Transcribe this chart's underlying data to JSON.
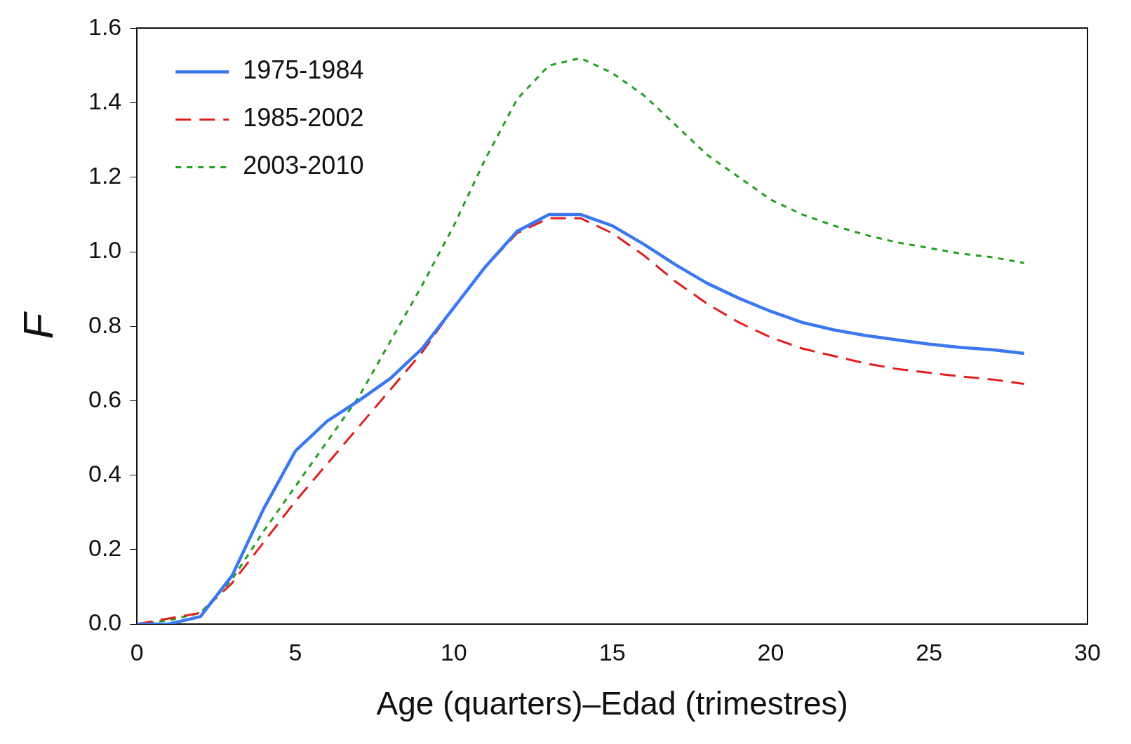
{
  "chart_data": {
    "type": "line",
    "xlabel": "Age (quarters)–Edad (trimestres)",
    "ylabel": "F",
    "x": [
      0,
      1,
      2,
      3,
      4,
      5,
      6,
      7,
      8,
      9,
      10,
      11,
      12,
      13,
      14,
      15,
      16,
      17,
      18,
      19,
      20,
      21,
      22,
      23,
      24,
      25,
      26,
      27,
      28
    ],
    "series": [
      {
        "name": "1975-1984",
        "color": "#3a78f0",
        "line_style": "solid",
        "values": [
          0,
          0,
          0.02,
          0.13,
          0.31,
          0.465,
          0.545,
          0.6,
          0.66,
          0.74,
          0.85,
          0.96,
          1.055,
          1.1,
          1.1,
          1.07,
          1.02,
          0.965,
          0.915,
          0.875,
          0.84,
          0.81,
          0.79,
          0.775,
          0.763,
          0.752,
          0.743,
          0.737,
          0.727
        ]
      },
      {
        "name": "1985-2002",
        "color": "#e02020",
        "line_style": "dashed",
        "values": [
          0,
          0.015,
          0.03,
          0.11,
          0.22,
          0.33,
          0.43,
          0.53,
          0.63,
          0.73,
          0.85,
          0.96,
          1.05,
          1.09,
          1.09,
          1.05,
          0.99,
          0.92,
          0.86,
          0.81,
          0.77,
          0.74,
          0.72,
          0.7,
          0.685,
          0.675,
          0.665,
          0.657,
          0.645
        ]
      },
      {
        "name": "2003-2010",
        "color": "#22a020",
        "line_style": "dotted",
        "values": [
          0,
          0.01,
          0.03,
          0.12,
          0.25,
          0.37,
          0.49,
          0.61,
          0.76,
          0.91,
          1.07,
          1.25,
          1.41,
          1.5,
          1.52,
          1.48,
          1.42,
          1.34,
          1.26,
          1.2,
          1.14,
          1.1,
          1.07,
          1.045,
          1.025,
          1.01,
          0.995,
          0.985,
          0.97
        ]
      }
    ],
    "xlim": [
      0,
      30
    ],
    "xticks": [
      0,
      5,
      10,
      15,
      20,
      25,
      30
    ],
    "ylim": [
      0,
      1.6
    ],
    "yticks": [
      {
        "value": 0,
        "label": "0.0"
      },
      0.2,
      0.4,
      0.6,
      0.8,
      {
        "value": 1,
        "label": "1.0"
      },
      1.2,
      1.4,
      1.6
    ],
    "grid": false,
    "legend": "top left",
    "marker": "none"
  }
}
